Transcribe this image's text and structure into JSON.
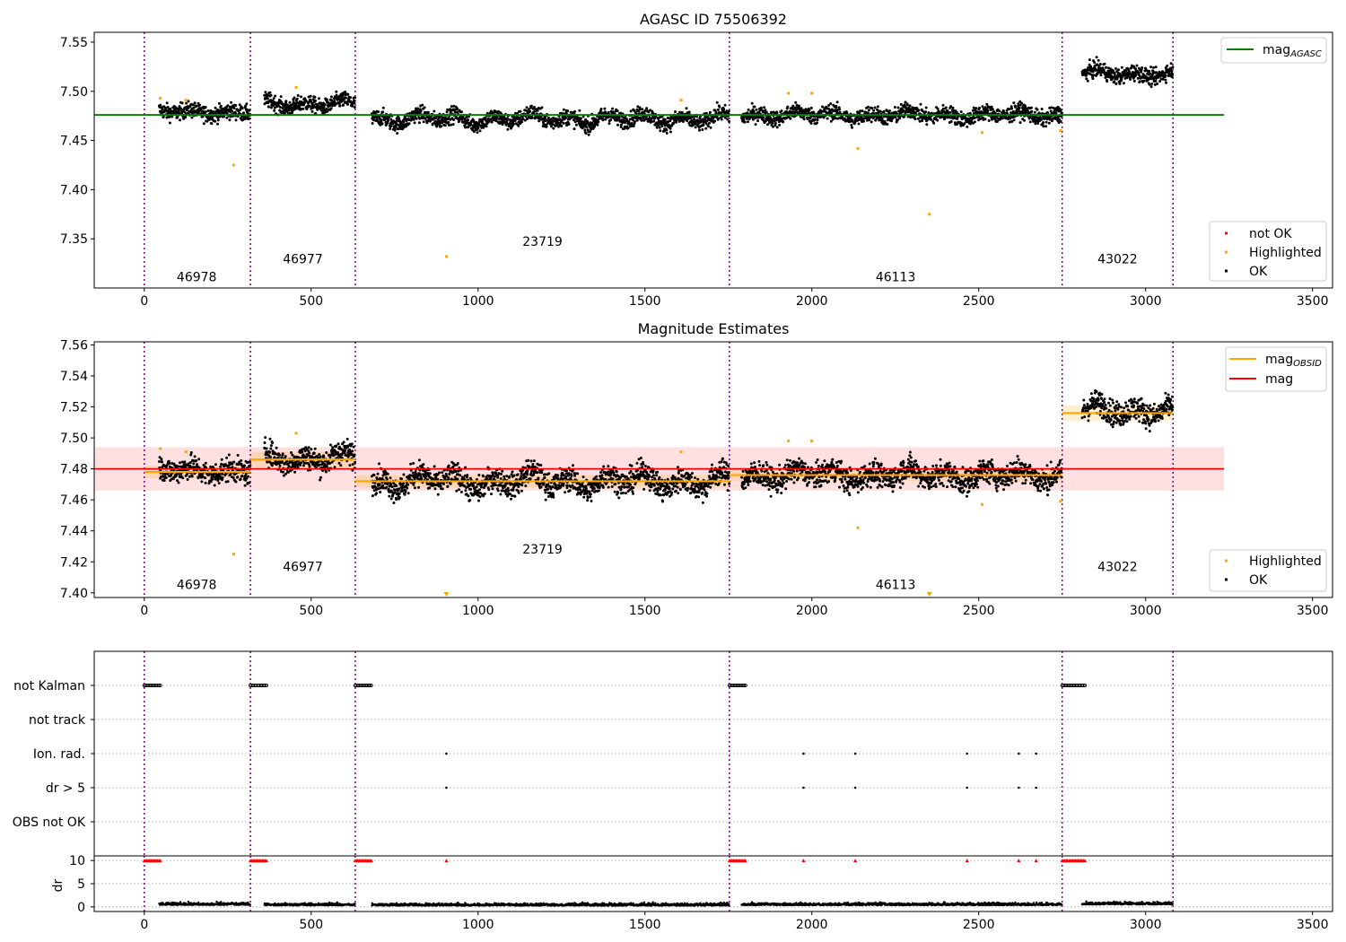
{
  "figure_title": "AGASC ID 75506392",
  "chart_data": [
    {
      "type": "scatter",
      "title": "AGASC ID 75506392",
      "xlim": [
        -150,
        3560
      ],
      "ylim": [
        7.3,
        7.56
      ],
      "xticks": [
        0,
        500,
        1000,
        1500,
        2000,
        2500,
        3000,
        3500
      ],
      "yticks": [
        7.35,
        7.4,
        7.45,
        7.5,
        7.55
      ],
      "ytick_decimals": 2,
      "grid": false,
      "obsid_boundaries": [
        0,
        318,
        632,
        1753,
        2750,
        3082
      ],
      "obsid_labels": [
        {
          "text": "46978",
          "x": 157,
          "y": 7.307
        },
        {
          "text": "46977",
          "x": 475,
          "y": 7.325
        },
        {
          "text": "23719",
          "x": 1193,
          "y": 7.343
        },
        {
          "text": "46113",
          "x": 2251,
          "y": 7.307
        },
        {
          "text": "43022",
          "x": 2916,
          "y": 7.325
        }
      ],
      "mag_agasc": {
        "value": 7.476,
        "x_range": [
          -150,
          3235
        ],
        "color": "#008000"
      },
      "segments": [
        {
          "x0": 45,
          "x1": 318,
          "mean": 7.479,
          "noise": 0.004,
          "amp": 0.002
        },
        {
          "x0": 360,
          "x1": 632,
          "mean": 7.487,
          "noise": 0.004,
          "amp": 0.003
        },
        {
          "x0": 682,
          "x1": 1753,
          "mean": 7.472,
          "noise": 0.004,
          "amp": 0.004
        },
        {
          "x0": 1790,
          "x1": 2750,
          "mean": 7.476,
          "noise": 0.004,
          "amp": 0.003
        },
        {
          "x0": 2810,
          "x1": 3082,
          "mean": 7.518,
          "noise": 0.004,
          "amp": 0.003
        }
      ],
      "highlighted": [
        {
          "x": 48,
          "y": 7.493
        },
        {
          "x": 125,
          "y": 7.491
        },
        {
          "x": 268,
          "y": 7.425
        },
        {
          "x": 455,
          "y": 7.504
        },
        {
          "x": 905,
          "y": 7.332
        },
        {
          "x": 1608,
          "y": 7.491
        },
        {
          "x": 1930,
          "y": 7.498
        },
        {
          "x": 2000,
          "y": 7.498
        },
        {
          "x": 2138,
          "y": 7.442
        },
        {
          "x": 2352,
          "y": 7.375
        },
        {
          "x": 2510,
          "y": 7.458
        },
        {
          "x": 2745,
          "y": 7.46
        }
      ],
      "legend_top": [
        {
          "label": "mag",
          "sub": "AGASC",
          "color": "#008000"
        }
      ],
      "legend_bottom": [
        {
          "label": "not OK",
          "color": "#ff0000"
        },
        {
          "label": "Highlighted",
          "color": "#ffa500"
        },
        {
          "label": "OK",
          "color": "#000000"
        }
      ]
    },
    {
      "type": "scatter",
      "title": "Magnitude Estimates",
      "xlim": [
        -150,
        3560
      ],
      "ylim": [
        7.397,
        7.562
      ],
      "xticks": [
        0,
        500,
        1000,
        1500,
        2000,
        2500,
        3000,
        3500
      ],
      "yticks": [
        7.4,
        7.42,
        7.44,
        7.46,
        7.48,
        7.5,
        7.52,
        7.54,
        7.56
      ],
      "ytick_decimals": 2,
      "grid": false,
      "obsid_labels": [
        {
          "text": "46978",
          "x": 157,
          "y": 7.4025
        },
        {
          "text": "46977",
          "x": 475,
          "y": 7.414
        },
        {
          "text": "23719",
          "x": 1193,
          "y": 7.4255
        },
        {
          "text": "46113",
          "x": 2251,
          "y": 7.4025
        },
        {
          "text": "43022",
          "x": 2916,
          "y": 7.414
        }
      ],
      "mag": {
        "value": 7.48,
        "band": [
          7.466,
          7.494
        ],
        "x_range": [
          -150,
          3235
        ],
        "color": "#ff0000"
      },
      "mag_obsid": [
        {
          "x0": 0,
          "x1": 318,
          "value": 7.478,
          "band": [
            7.474,
            7.482
          ]
        },
        {
          "x0": 318,
          "x1": 632,
          "value": 7.486,
          "band": [
            7.481,
            7.491
          ]
        },
        {
          "x0": 632,
          "x1": 1753,
          "value": 7.472,
          "band": [
            7.468,
            7.476
          ]
        },
        {
          "x0": 1753,
          "x1": 2750,
          "value": 7.476,
          "band": [
            7.472,
            7.48
          ]
        },
        {
          "x0": 2750,
          "x1": 3082,
          "value": 7.516,
          "band": [
            7.511,
            7.521
          ]
        }
      ],
      "highlighted": [
        {
          "x": 48,
          "y": 7.493
        },
        {
          "x": 125,
          "y": 7.491
        },
        {
          "x": 268,
          "y": 7.425
        },
        {
          "x": 455,
          "y": 7.503
        },
        {
          "x": 1608,
          "y": 7.491
        },
        {
          "x": 1930,
          "y": 7.498
        },
        {
          "x": 2000,
          "y": 7.498
        },
        {
          "x": 2138,
          "y": 7.442
        },
        {
          "x": 2510,
          "y": 7.457
        },
        {
          "x": 2745,
          "y": 7.459
        }
      ],
      "off_scale_markers": [
        {
          "x": 905
        },
        {
          "x": 2352
        }
      ],
      "legend_top": [
        {
          "label": "mag",
          "sub": "OBSID",
          "color": "#ffa500"
        },
        {
          "label": "mag",
          "sub": "",
          "color": "#ff0000"
        }
      ],
      "legend_bottom": [
        {
          "label": "Highlighted",
          "color": "#ffa500"
        },
        {
          "label": "OK",
          "color": "#000000"
        }
      ]
    },
    {
      "type": "scatter",
      "title": "",
      "xlim": [
        -150,
        3560
      ],
      "xticks": [
        0,
        500,
        1000,
        1500,
        2000,
        2500,
        3000,
        3500
      ],
      "flag_rows": [
        "not Kalman",
        "not track",
        "Ion. rad.",
        "dr > 5",
        "OBS not OK"
      ],
      "flags": {
        "not Kalman": {
          "ranges": [
            [
              0,
              50
            ],
            [
              318,
              368
            ],
            [
              632,
              682
            ],
            [
              1753,
              1803
            ],
            [
              2750,
              2820
            ]
          ]
        },
        "Ion. rad.": {
          "points": [
            905,
            1975,
            2130,
            2465,
            2620,
            2672
          ]
        },
        "dr > 5": {
          "points": [
            905,
            1975,
            2130,
            2465,
            2620,
            2672
          ]
        }
      },
      "dr": {
        "ylabel": "dr",
        "yticks": [
          0,
          5,
          10
        ],
        "ylim": [
          -1,
          11
        ],
        "high_ranges": [
          [
            0,
            50
          ],
          [
            318,
            368
          ],
          [
            632,
            682
          ],
          [
            1753,
            1803
          ],
          [
            2750,
            2820
          ]
        ],
        "high_points": [
          905,
          1975,
          2130,
          2465,
          2620,
          2672
        ],
        "segments": [
          {
            "x0": 45,
            "x1": 318,
            "level": 0.4
          },
          {
            "x0": 360,
            "x1": 632,
            "level": 0.3
          },
          {
            "x0": 682,
            "x1": 1753,
            "level": 0.25
          },
          {
            "x0": 1790,
            "x1": 2750,
            "level": 0.35
          },
          {
            "x0": 2810,
            "x1": 3082,
            "level": 0.5
          }
        ]
      }
    }
  ]
}
